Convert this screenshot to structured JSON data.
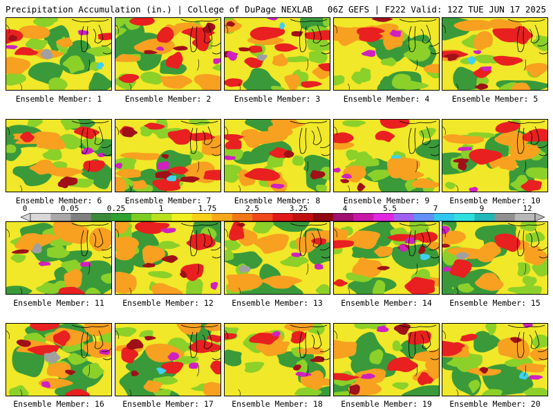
{
  "header": {
    "left": "Precipitation Accumulation (in.) | College of DuPage NEXLAB",
    "right": "06Z GEFS | F222 Valid: 12Z TUE JUN 17 2025"
  },
  "members": [
    "Ensemble Member: 1",
    "Ensemble Member: 2",
    "Ensemble Member: 3",
    "Ensemble Member: 4",
    "Ensemble Member: 5",
    "Ensemble Member: 6",
    "Ensemble Member: 7",
    "Ensemble Member: 8",
    "Ensemble Member: 9",
    "Ensemble Member: 10",
    "Ensemble Member: 11",
    "Ensemble Member: 12",
    "Ensemble Member: 13",
    "Ensemble Member: 14",
    "Ensemble Member: 15",
    "Ensemble Member: 16",
    "Ensemble Member: 17",
    "Ensemble Member: 18",
    "Ensemble Member: 19",
    "Ensemble Member: 20"
  ],
  "colorbar": {
    "tick_labels": [
      "0",
      "0.05",
      "0.25",
      "1",
      "1.75",
      "2.5",
      "3.25",
      "4",
      "5.5",
      "7",
      "9",
      "12"
    ],
    "colors": [
      "#d8d8d8",
      "#a8a8a8",
      "#808080",
      "#3a8a3a",
      "#2fa22f",
      "#7ccc22",
      "#b8e01c",
      "#f0f020",
      "#f8d018",
      "#f8a818",
      "#f07818",
      "#f04818",
      "#e01818",
      "#c01010",
      "#900810",
      "#a01070",
      "#c818a8",
      "#e028e0",
      "#a060f0",
      "#6090f8",
      "#30c8f0",
      "#30e0e0",
      "#20b8b8",
      "#909090",
      "#b8b8b8"
    ]
  },
  "colors": {
    "green": "#3a9a3a",
    "lightgreen": "#8cd02a",
    "yellow": "#f0e828",
    "orange": "#f8a020",
    "red": "#e82020",
    "darkred": "#a01018",
    "magenta": "#d020c0",
    "cyan": "#40d0f0",
    "gray": "#a0a0a0"
  }
}
